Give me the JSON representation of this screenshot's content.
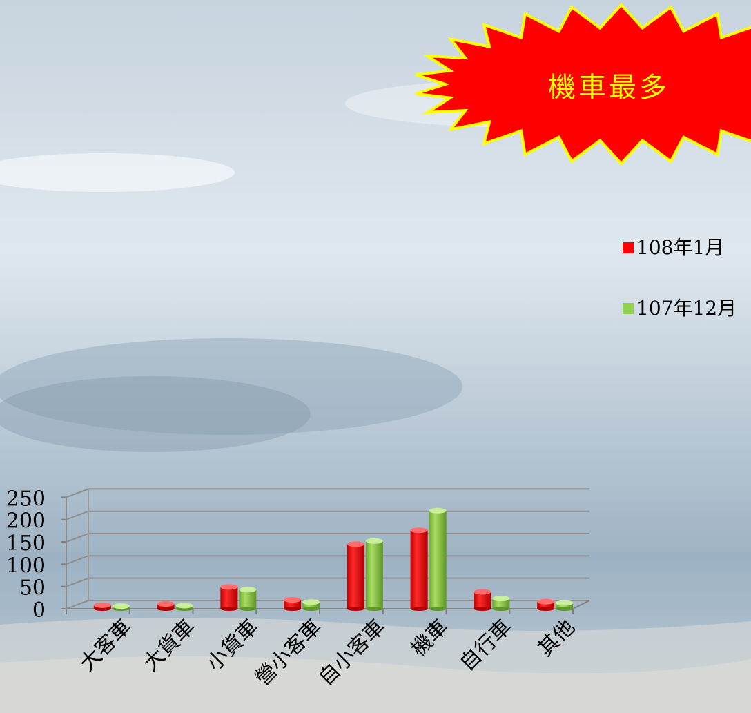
{
  "chart_data": {
    "type": "bar",
    "title": "",
    "xlabel": "",
    "ylabel": "",
    "categories": [
      "大客車",
      "大貨車",
      "小貨車",
      "營小客車",
      "自小客車",
      "機車",
      "自行車",
      "其他"
    ],
    "series": [
      {
        "name": "108年1月",
        "color": "#FF0000",
        "values": [
          8,
          11,
          49,
          20,
          145,
          176,
          38,
          16
        ]
      },
      {
        "name": "107年12月",
        "color": "#92D050",
        "values": [
          6,
          7,
          43,
          15,
          152,
          220,
          23,
          13
        ]
      }
    ],
    "yticks": [
      "0",
      "50",
      "100",
      "150",
      "200",
      "250"
    ],
    "ylim": [
      0,
      250
    ],
    "grid": true,
    "legend_position": "right",
    "annotation": {
      "text": "機車最多",
      "shape": "starburst",
      "fill": "#FF0000",
      "outline": "#FFFF00",
      "text_color": "#FFFF00"
    },
    "background": "sky-and-sea-photo"
  }
}
